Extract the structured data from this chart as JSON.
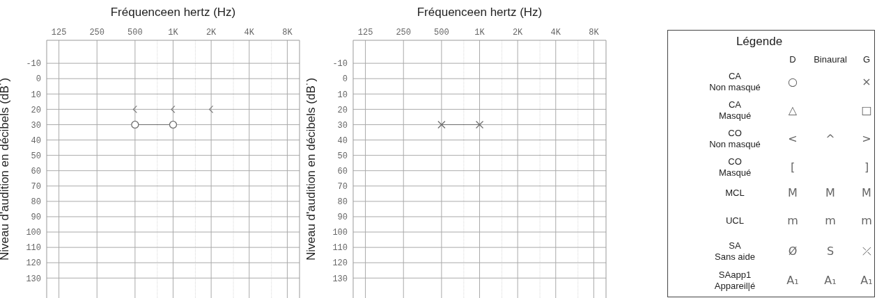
{
  "chart_data": [
    {
      "type": "line",
      "title": "Fréquenceen hertz (Hz)",
      "ylabel": "Niveau d'audition en décibels (dB˙)",
      "xlim": [
        100,
        10000
      ],
      "ylim": [
        143,
        -25
      ],
      "xticks": [
        125,
        250,
        500,
        {
          "value": 750,
          "label": null
        },
        {
          "value": 1000,
          "label": "1K"
        },
        {
          "value": 1500,
          "label": null
        },
        {
          "value": 2000,
          "label": "2K"
        },
        {
          "value": 3000,
          "label": null
        },
        {
          "value": 4000,
          "label": "4K"
        },
        {
          "value": 6000,
          "label": null
        },
        {
          "value": 8000,
          "label": "8K"
        }
      ],
      "yticks": [
        -10,
        0,
        10,
        20,
        30,
        40,
        50,
        60,
        70,
        80,
        90,
        100,
        110,
        120,
        130
      ],
      "grid": true,
      "log": "x",
      "series": [
        {
          "type": "scatter",
          "color": "#7a7a7a",
          "x": [
            500,
            1000,
            2000
          ],
          "values": [
            20,
            20,
            20
          ]
        },
        {
          "type": "line",
          "color": "#6e6e6e",
          "marker": "circle",
          "line_style": "solid",
          "x": [
            500,
            1000
          ],
          "values": [
            30,
            30
          ]
        }
      ]
    },
    {
      "type": "line",
      "title": "Fréquenceen hertz (Hz)",
      "ylabel": "Niveau d'audition en décibels (dB˙)",
      "xlim": [
        100,
        10000
      ],
      "ylim": [
        143,
        -25
      ],
      "xticks": [
        125,
        250,
        500,
        {
          "value": 750,
          "label": null
        },
        {
          "value": 1000,
          "label": "1K"
        },
        {
          "value": 1500,
          "label": null
        },
        {
          "value": 2000,
          "label": "2K"
        },
        {
          "value": 3000,
          "label": null
        },
        {
          "value": 4000,
          "label": "4K"
        },
        {
          "value": 6000,
          "label": null
        },
        {
          "value": 8000,
          "label": "8K"
        }
      ],
      "yticks": [
        -10,
        0,
        10,
        20,
        30,
        40,
        50,
        60,
        70,
        80,
        90,
        100,
        110,
        120,
        130
      ],
      "grid": true,
      "log": "x",
      "series": [
        {
          "type": "line",
          "color": "#6e6e6e",
          "marker": "cross",
          "line_style": "solid",
          "x": [
            500,
            1000
          ],
          "values": [
            30,
            30
          ]
        }
      ]
    },
    {
      "type": "other",
      "title": "Légende",
      "annotations": [
        "D",
        "Binaural",
        "G",
        "CA\nNon masqué",
        "○",
        null,
        "×",
        "CA\nMasqué",
        "△",
        null,
        "□",
        "CO\nNon masqué",
        "<",
        "^",
        ">",
        "CO\nMasqué",
        "[",
        null,
        "]",
        "MCL",
        "M",
        "M",
        "M",
        "UCL",
        "m",
        "m",
        "m",
        "SA\nSans aide",
        "Ø",
        "S",
        "⤫",
        "SAapp1\nAppareil|é",
        "A₁",
        "A₁",
        "A₁"
      ]
    }
  ]
}
